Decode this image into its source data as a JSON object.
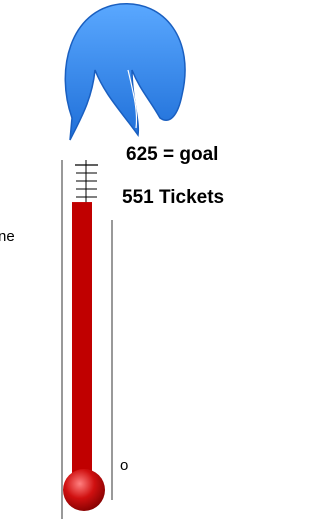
{
  "chart_data": {
    "type": "thermometer",
    "values": [
      551
    ],
    "value_labels": [
      "551 Tickets"
    ],
    "goal": 625,
    "goal_label": "625 = goal",
    "color": "#c00000",
    "annotations": [
      "ne",
      "o"
    ]
  }
}
